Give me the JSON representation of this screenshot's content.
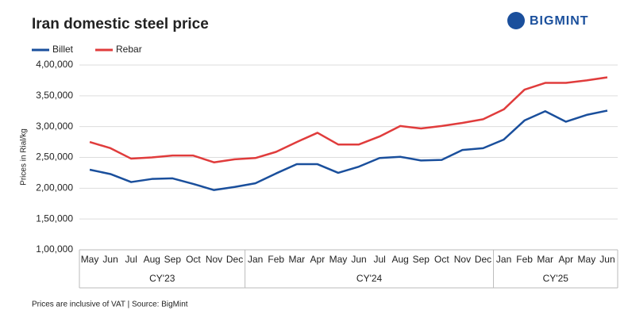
{
  "chart_data": {
    "type": "line",
    "title": "Iran domestic steel price",
    "brand": "BIGMINT",
    "y_label": "Prices in Rial/kg",
    "note": "Prices are inclusive of VAT | Source: BigMint",
    "category_groups": [
      {
        "label": "CY'23",
        "categories": [
          "May",
          "Jun",
          "Jul",
          "Aug",
          "Sep",
          "Oct",
          "Nov",
          "Dec"
        ]
      },
      {
        "label": "CY'24",
        "categories": [
          "Jan",
          "Feb",
          "Mar",
          "Apr",
          "May",
          "Jun",
          "Jul",
          "Aug",
          "Sep",
          "Oct",
          "Nov",
          "Dec"
        ]
      },
      {
        "label": "CY'25",
        "categories": [
          "Jan",
          "Feb",
          "Mar",
          "Apr",
          "May",
          "Jun"
        ]
      }
    ],
    "series": [
      {
        "name": "Billet",
        "color": "#1a4f9c",
        "values": [
          230000,
          223000,
          210000,
          215000,
          216000,
          207000,
          197000,
          202000,
          208000,
          224000,
          239000,
          239000,
          225000,
          235000,
          249000,
          251000,
          245000,
          246000,
          262000,
          265000,
          279000,
          310000,
          325000,
          308000,
          319000,
          326000
        ]
      },
      {
        "name": "Rebar",
        "color": "#e03c3c",
        "values": [
          275000,
          265000,
          248000,
          250000,
          253000,
          253000,
          242000,
          247000,
          249000,
          259000,
          275000,
          290000,
          271000,
          271000,
          284000,
          301000,
          297000,
          301000,
          306000,
          312000,
          328000,
          360000,
          371000,
          371000,
          375000,
          380000
        ]
      }
    ],
    "ylim": [
      100000,
      400000
    ],
    "yticks": [
      {
        "value": 100000,
        "label": "1,00,000"
      },
      {
        "value": 150000,
        "label": "1,50,000"
      },
      {
        "value": 200000,
        "label": "2,00,000"
      },
      {
        "value": 250000,
        "label": "2,50,000"
      },
      {
        "value": 300000,
        "label": "3,00,000"
      },
      {
        "value": 350000,
        "label": "3,50,000"
      },
      {
        "value": 400000,
        "label": "4,00,000"
      }
    ],
    "grid": true
  }
}
